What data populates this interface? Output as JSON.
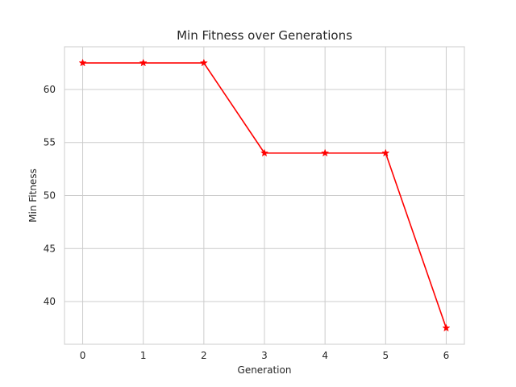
{
  "chart_data": {
    "type": "line",
    "title": "Min Fitness over Generations",
    "xlabel": "Generation",
    "ylabel": "Min Fitness",
    "x": [
      0,
      1,
      2,
      3,
      4,
      5,
      6
    ],
    "series": [
      {
        "values": [
          62.5,
          62.5,
          62.5,
          54.0,
          54.0,
          54.0,
          37.5
        ],
        "color": "#ff0000",
        "marker": "star"
      }
    ],
    "xlim": [
      -0.3,
      6.3
    ],
    "ylim": [
      35.975,
      64.025
    ],
    "xticks": [
      0,
      1,
      2,
      3,
      4,
      5,
      6
    ],
    "yticks": [
      40,
      45,
      50,
      55,
      60
    ],
    "grid": true,
    "legend": "none"
  }
}
